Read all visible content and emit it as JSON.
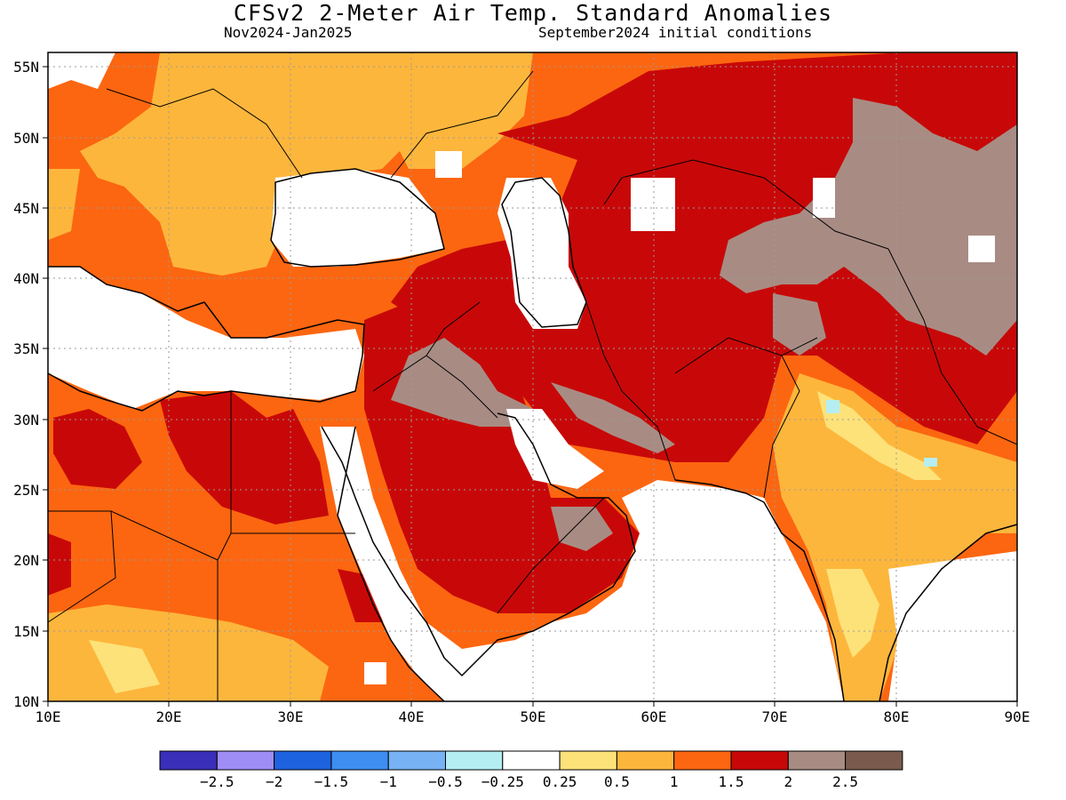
{
  "header": {
    "title": "CFSv2 2-Meter Air Temp. Standard Anomalies",
    "period": "Nov2024-Jan2025",
    "initial_conditions": "September2024 initial conditions"
  },
  "map": {
    "lon_range": [
      10,
      90
    ],
    "lat_range": [
      10,
      56
    ],
    "lon_ticks": [
      "10E",
      "20E",
      "30E",
      "40E",
      "50E",
      "60E",
      "70E",
      "80E",
      "90E"
    ],
    "lat_ticks": [
      "10N",
      "15N",
      "20N",
      "25N",
      "30N",
      "35N",
      "40N",
      "45N",
      "50N",
      "55N"
    ]
  },
  "legend": {
    "colors": [
      "#3a2fb8",
      "#9f8df6",
      "#1e62e0",
      "#3d8ef0",
      "#76b2f4",
      "#b4eef2",
      "#ffffff",
      "#fde27a",
      "#fdb63c",
      "#fc6610",
      "#c80808",
      "#a88c84",
      "#7a5a4c"
    ],
    "labels": [
      "−2.5",
      "−2",
      "−1.5",
      "−1",
      "−0.5",
      "−0.25",
      "0.25",
      "0.5",
      "1",
      "1.5",
      "2",
      "2.5"
    ]
  },
  "palette": {
    "white": "#ffffff",
    "yellow": "#fde27a",
    "light_orange": "#fdb63c",
    "orange": "#fc6610",
    "red": "#c80808",
    "brown": "#a88c84",
    "light_blue": "#b4eef2"
  }
}
